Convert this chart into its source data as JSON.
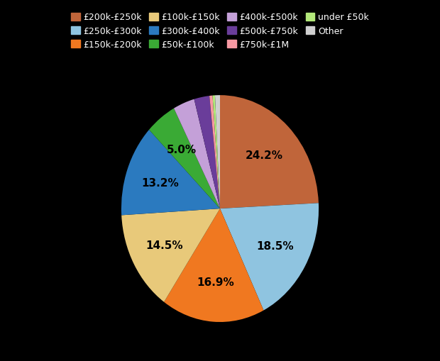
{
  "labels": [
    "£200k-£250k",
    "£250k-£300k",
    "£150k-£200k",
    "£100k-£150k",
    "£300k-£400k",
    "£50k-£100k",
    "£400k-£500k",
    "£500k-£750k",
    "£750k-£1M",
    "under £50k",
    "Other"
  ],
  "values": [
    24.1,
    18.4,
    16.8,
    14.4,
    13.1,
    5.0,
    3.5,
    2.5,
    0.5,
    0.4,
    0.8
  ],
  "colors": [
    "#c0653a",
    "#8fc4e0",
    "#f07820",
    "#e8c97a",
    "#2b7abf",
    "#3aaa35",
    "#c4a0d8",
    "#6a3d9a",
    "#f799a3",
    "#b3e87a",
    "#d0d0d0"
  ],
  "background_color": "#000000",
  "text_color": "#ffffff",
  "label_text_color": "#000000",
  "figsize": [
    6.2,
    5.1
  ],
  "dpi": 100
}
